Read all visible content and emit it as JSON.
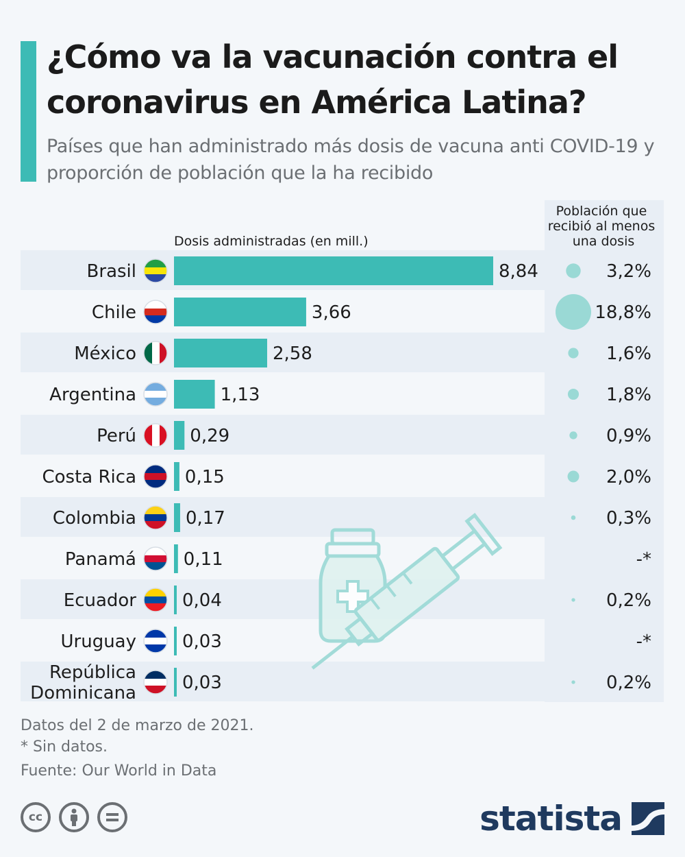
{
  "header": {
    "title": "¿Cómo va la vacunación contra el coronavirus en América Latina?",
    "subtitle": "Países que han administrado más dosis de vacuna anti COVID-19 y proporción de población que la ha recibido"
  },
  "chart_data": {
    "type": "bar",
    "title": "¿Cómo va la vacunación contra el coronavirus en América Latina?",
    "xlabel": "Dosis administradas (en mill.)",
    "bubble_label": "Población que recibió al menos una dosis",
    "categories": [
      "Brasil",
      "Chile",
      "México",
      "Argentina",
      "Perú",
      "Costa Rica",
      "Colombia",
      "Panamá",
      "Ecuador",
      "Uruguay",
      "República Dominicana"
    ],
    "values": [
      8.84,
      3.66,
      2.58,
      1.13,
      0.29,
      0.15,
      0.17,
      0.11,
      0.04,
      0.03,
      0.03
    ],
    "value_labels": [
      "8,84",
      "3,66",
      "2,58",
      "1,13",
      "0,29",
      "0,15",
      "0,17",
      "0,11",
      "0,04",
      "0,03",
      "0,03"
    ],
    "population_pct": [
      3.2,
      18.8,
      1.6,
      1.8,
      0.9,
      2.0,
      0.3,
      null,
      0.2,
      null,
      0.2
    ],
    "population_pct_labels": [
      "3,2%",
      "18,8%",
      "1,6%",
      "1,8%",
      "0,9%",
      "2,0%",
      "0,3%",
      "-*",
      "0,2%",
      "-*",
      "0,2%"
    ],
    "colors": {
      "bar": "#3dbbb5",
      "bubble": "#9ad9d5",
      "row": "#e8eef5"
    }
  },
  "flags": [
    "brazil-flag-icon",
    "chile-flag-icon",
    "mexico-flag-icon",
    "argentina-flag-icon",
    "peru-flag-icon",
    "costa-rica-flag-icon",
    "colombia-flag-icon",
    "panama-flag-icon",
    "ecuador-flag-icon",
    "uruguay-flag-icon",
    "dominican-republic-flag-icon"
  ],
  "footer": {
    "note1": "Datos del 2 de marzo de 2021.",
    "note2": "* Sin datos.",
    "source": "Fuente: Our World in Data"
  },
  "brand": {
    "logo_text": "statista"
  }
}
